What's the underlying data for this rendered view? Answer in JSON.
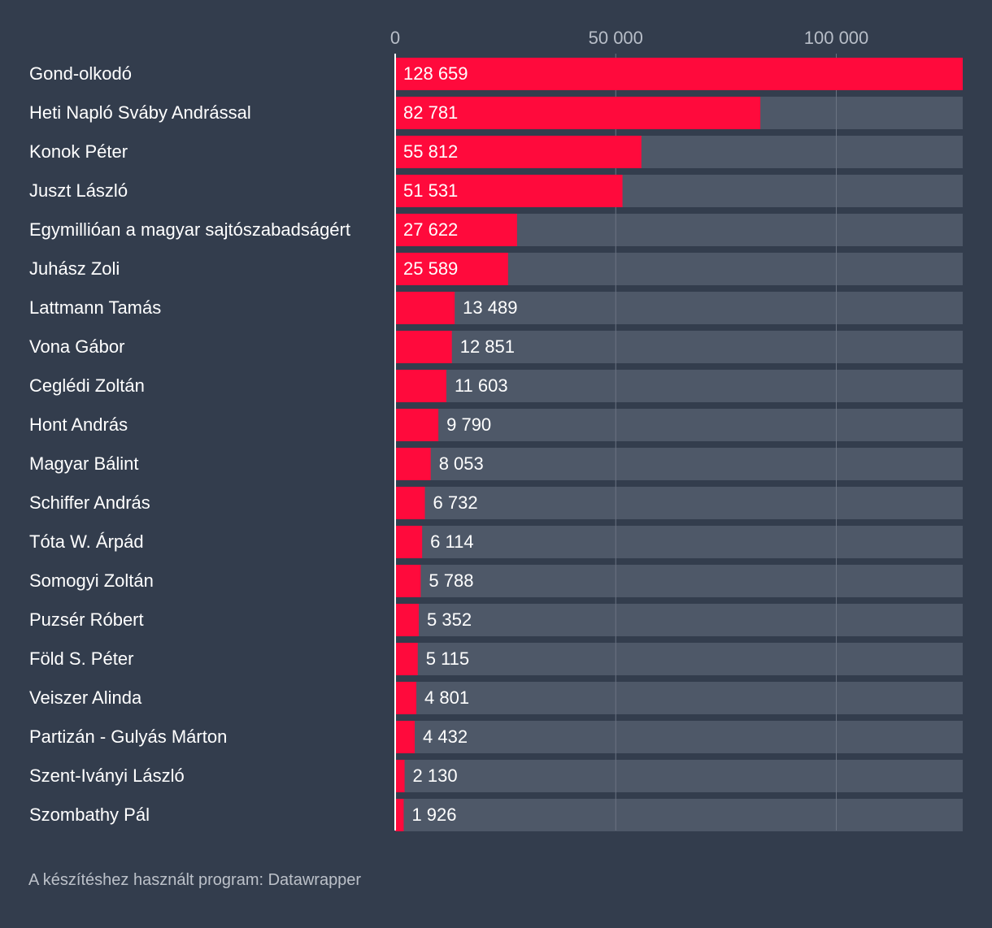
{
  "colors": {
    "background": "#333d4d",
    "bar": "#ff0a3c",
    "track": "#4e5868",
    "gridline": "#6b7482",
    "label": "#ffffff",
    "tick": "#b8bec8",
    "footer": "#bcc1c9"
  },
  "chart_data": {
    "type": "bar",
    "orientation": "horizontal",
    "title": "",
    "xlabel": "",
    "ylabel": "",
    "xlim": [
      0,
      128659
    ],
    "ticks": [
      {
        "value": 0,
        "label": "0"
      },
      {
        "value": 50000,
        "label": "50 000"
      },
      {
        "value": 100000,
        "label": "100 000"
      }
    ],
    "categories": [
      "Gond-olkodó",
      "Heti Napló Sváby Andrással",
      "Konok Péter",
      "Juszt László",
      "Egymillióan a magyar sajtószabadságért",
      "Juhász Zoli",
      "Lattmann Tamás",
      "Vona Gábor",
      "Ceglédi Zoltán",
      "Hont András",
      "Magyar Bálint",
      "Schiffer András",
      "Tóta W. Árpád",
      "Somogyi Zoltán",
      "Puzsér Róbert",
      "Föld S. Péter",
      "Veiszer Alinda",
      "Partizán - Gulyás Márton",
      "Szent-Iványi László",
      "Szombathy Pál"
    ],
    "values": [
      128659,
      82781,
      55812,
      51531,
      27622,
      25589,
      13489,
      12851,
      11603,
      9790,
      8053,
      6732,
      6114,
      5788,
      5352,
      5115,
      4801,
      4432,
      2130,
      1926
    ],
    "value_labels": [
      "128 659",
      "82 781",
      "55 812",
      "51 531",
      "27 622",
      "25 589",
      "13 489",
      "12 851",
      "11 603",
      "9 790",
      "8 053",
      "6 732",
      "6 114",
      "5 788",
      "5 352",
      "5 115",
      "4 801",
      "4 432",
      "2 130",
      "1 926"
    ]
  },
  "footer": {
    "text": "A készítéshez használt program: Datawrapper"
  }
}
